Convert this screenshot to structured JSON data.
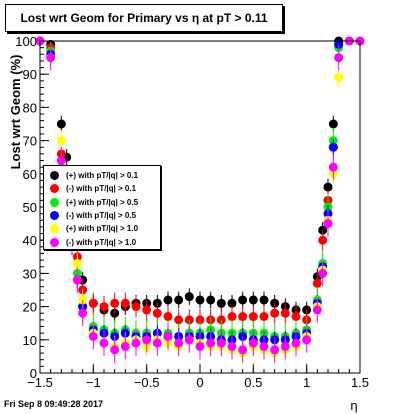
{
  "footer": "Fri Sep  8 09:49:28 2017",
  "colors": [
    "#000000",
    "#ff0000",
    "#00ee00",
    "#0000ff",
    "#ffff00",
    "#ff00ff"
  ],
  "chart_data": {
    "type": "scatter",
    "title": "Lost wrt Geom for Primary vs   η at pT > 0.11",
    "xlabel": "η",
    "ylabel": "Lost wrt Geom (%)",
    "xlim": [
      -1.5,
      1.5
    ],
    "ylim": [
      0,
      100
    ],
    "xticks": [
      "−1.5",
      "−1",
      "−0.5",
      "0",
      "0.5",
      "1",
      "1.5"
    ],
    "yticks": [
      "0",
      "10",
      "20",
      "30",
      "40",
      "50",
      "60",
      "70",
      "80",
      "90",
      "100"
    ],
    "grid": false,
    "legend_position": "middle-left",
    "series": [
      {
        "name": "(+) with pT/|q| > 0.1",
        "color": "#000000",
        "x": [
          -1.5,
          -1.4,
          -1.3,
          -1.25,
          -1.2,
          -1.15,
          -1.1,
          -1.0,
          -0.9,
          -0.8,
          -0.7,
          -0.6,
          -0.5,
          -0.4,
          -0.3,
          -0.2,
          -0.1,
          0.0,
          0.1,
          0.2,
          0.3,
          0.4,
          0.5,
          0.6,
          0.7,
          0.8,
          0.9,
          1.0,
          1.1,
          1.15,
          1.2,
          1.25,
          1.3,
          1.4,
          1.5
        ],
        "y": [
          100,
          99,
          75,
          65,
          52,
          40,
          28,
          21,
          19,
          18,
          20,
          21,
          21,
          21,
          22,
          22,
          23,
          22,
          22,
          21,
          21,
          22,
          22,
          22,
          21,
          20,
          19,
          19,
          29,
          43,
          56,
          75,
          100,
          100,
          100
        ]
      },
      {
        "name": "(-) with pT/|q| > 0.1",
        "color": "#ff0000",
        "x": [
          -1.5,
          -1.4,
          -1.3,
          -1.25,
          -1.2,
          -1.15,
          -1.1,
          -1.0,
          -0.9,
          -0.8,
          -0.7,
          -0.6,
          -0.5,
          -0.4,
          -0.3,
          -0.2,
          -0.1,
          0.0,
          0.1,
          0.2,
          0.3,
          0.4,
          0.5,
          0.6,
          0.7,
          0.8,
          0.9,
          1.0,
          1.1,
          1.15,
          1.2,
          1.25,
          1.3,
          1.4,
          1.5
        ],
        "y": [
          100,
          98,
          66,
          55,
          44,
          35,
          25,
          21,
          20,
          21,
          21,
          20,
          19,
          18,
          17,
          16,
          16,
          16,
          16,
          16,
          17,
          17,
          17,
          17,
          18,
          18,
          17,
          16,
          27,
          40,
          52,
          68,
          99,
          100,
          100
        ]
      },
      {
        "name": "(+) with pT/|q| > 0.5",
        "color": "#00ee00",
        "x": [
          -1.5,
          -1.4,
          -1.3,
          -1.25,
          -1.2,
          -1.15,
          -1.1,
          -1.0,
          -0.9,
          -0.8,
          -0.7,
          -0.6,
          -0.5,
          -0.4,
          -0.3,
          -0.2,
          -0.1,
          0.0,
          0.1,
          0.2,
          0.3,
          0.4,
          0.5,
          0.6,
          0.7,
          0.8,
          0.9,
          1.0,
          1.1,
          1.15,
          1.2,
          1.25,
          1.3,
          1.4,
          1.5
        ],
        "y": [
          100,
          97,
          62,
          50,
          40,
          30,
          20,
          14,
          13,
          12,
          13,
          12,
          12,
          12,
          12,
          11,
          12,
          12,
          13,
          12,
          12,
          12,
          12,
          12,
          11,
          11,
          12,
          13,
          22,
          33,
          50,
          70,
          98,
          100,
          100
        ]
      },
      {
        "name": "(-) with pT/|q| > 0.5",
        "color": "#0000ff",
        "x": [
          -1.5,
          -1.4,
          -1.3,
          -1.25,
          -1.2,
          -1.15,
          -1.1,
          -1.0,
          -0.9,
          -0.8,
          -0.7,
          -0.6,
          -0.5,
          -0.4,
          -0.3,
          -0.2,
          -0.1,
          0.0,
          0.1,
          0.2,
          0.3,
          0.4,
          0.5,
          0.6,
          0.7,
          0.8,
          0.9,
          1.0,
          1.1,
          1.15,
          1.2,
          1.25,
          1.3,
          1.4,
          1.5
        ],
        "y": [
          100,
          96,
          60,
          48,
          38,
          28,
          20,
          13,
          12,
          11,
          12,
          11,
          11,
          12,
          11,
          11,
          11,
          11,
          11,
          10,
          10,
          11,
          10,
          10,
          10,
          10,
          11,
          12,
          21,
          32,
          48,
          68,
          99,
          100,
          100
        ]
      },
      {
        "name": "(+) with pT/|q| > 1.0",
        "color": "#ffff00",
        "x": [
          -1.5,
          -1.4,
          -1.3,
          -1.25,
          -1.2,
          -1.15,
          -1.1,
          -1.0,
          -0.9,
          -0.8,
          -0.7,
          -0.6,
          -0.5,
          -0.4,
          -0.3,
          -0.2,
          -0.1,
          0.0,
          0.1,
          0.2,
          0.3,
          0.4,
          0.5,
          0.6,
          0.7,
          0.8,
          0.9,
          1.0,
          1.1,
          1.15,
          1.2,
          1.25,
          1.3,
          1.4,
          1.5
        ],
        "y": [
          100,
          95,
          70,
          58,
          45,
          33,
          22,
          12,
          9,
          8,
          9,
          10,
          8,
          10,
          9,
          8,
          10,
          9,
          8,
          8,
          7,
          6,
          8,
          7,
          6,
          7,
          8,
          11,
          20,
          31,
          46,
          60,
          89,
          100,
          100
        ]
      },
      {
        "name": "(-) with pT/|q| > 1.0",
        "color": "#ff00ff",
        "x": [
          -1.5,
          -1.4,
          -1.3,
          -1.25,
          -1.2,
          -1.15,
          -1.1,
          -1.0,
          -0.9,
          -0.8,
          -0.7,
          -0.6,
          -0.5,
          -0.4,
          -0.3,
          -0.2,
          -0.1,
          0.0,
          0.1,
          0.2,
          0.3,
          0.4,
          0.5,
          0.6,
          0.7,
          0.8,
          0.9,
          1.0,
          1.1,
          1.15,
          1.2,
          1.25,
          1.3,
          1.4,
          1.5
        ],
        "y": [
          100,
          95,
          64,
          52,
          40,
          28,
          18,
          11,
          9,
          7,
          8,
          9,
          10,
          9,
          11,
          9,
          10,
          8,
          9,
          9,
          8,
          7,
          9,
          8,
          7,
          8,
          9,
          10,
          19,
          30,
          45,
          62,
          95,
          100,
          100
        ]
      }
    ]
  }
}
